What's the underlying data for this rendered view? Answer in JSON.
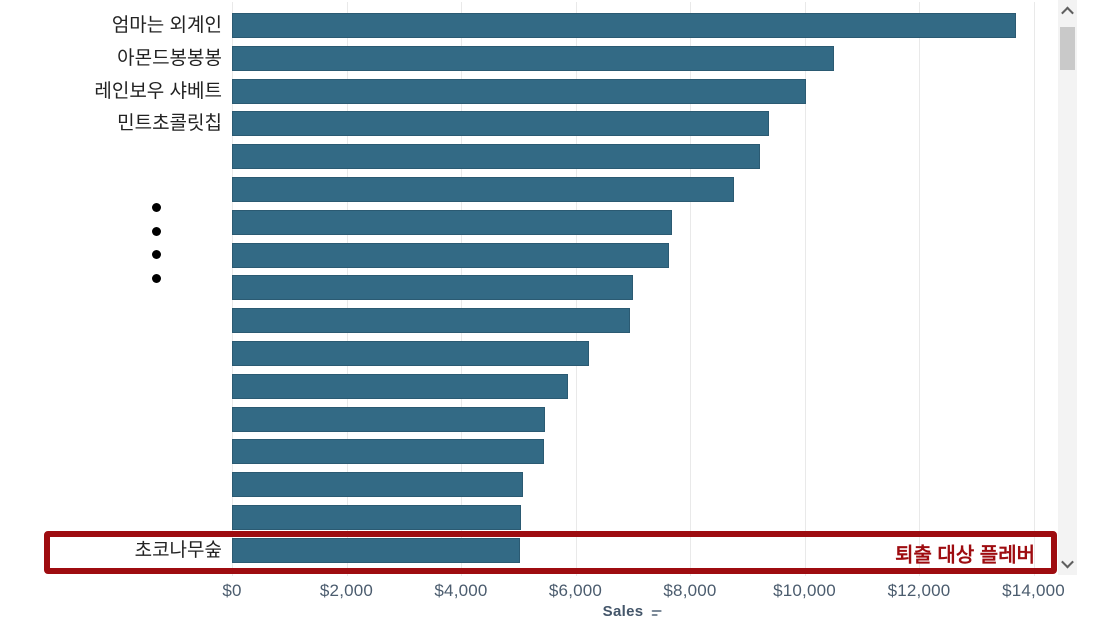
{
  "chart_data": {
    "type": "bar",
    "orientation": "horizontal",
    "title": "",
    "xlabel": "Sales",
    "ylabel": "",
    "xlim": [
      0,
      14000
    ],
    "x_tick_values": [
      0,
      2000,
      4000,
      6000,
      8000,
      10000,
      12000,
      14000
    ],
    "x_tick_labels": [
      "$0",
      "$2,000",
      "$4,000",
      "$6,000",
      "$8,000",
      "$10,000",
      "$12,000",
      "$14,000"
    ],
    "grid": "vertical light gridlines at each x tick",
    "legend": "none",
    "categories": [
      "엄마는 외계인",
      "아몬드봉봉봉",
      "레인보우 샤베트",
      "민트초콜릿칩",
      "",
      "",
      "",
      "",
      "",
      "",
      "",
      "",
      "",
      "",
      "",
      "",
      "초코나무숲"
    ],
    "values": [
      13700,
      10520,
      10030,
      9380,
      9220,
      8770,
      7690,
      7630,
      7000,
      6950,
      6240,
      5870,
      5460,
      5450,
      5090,
      5050,
      5030
    ],
    "omitted_label_ellipsis_dots": 4,
    "bar_color": "#336a85",
    "annotation": {
      "text": "퇴출 대상 플레버",
      "color": "#9e0c10",
      "description": "red rounded rectangle outlining the bottom bar row (초코나무숲)"
    }
  },
  "axis_style": {
    "tick_label_color": "#4b5c6e",
    "axis_title_color": "#44566a"
  },
  "icons": {
    "sort_icon": "descending-sort glyph beside Sales axis title",
    "scrollbar_up": "chevron-up",
    "scrollbar_down": "chevron-down"
  },
  "scrollbar": {
    "orientation": "vertical",
    "thumb_position": "top",
    "track_color": "#f3f3f3",
    "thumb_color": "#c9c9c9"
  }
}
